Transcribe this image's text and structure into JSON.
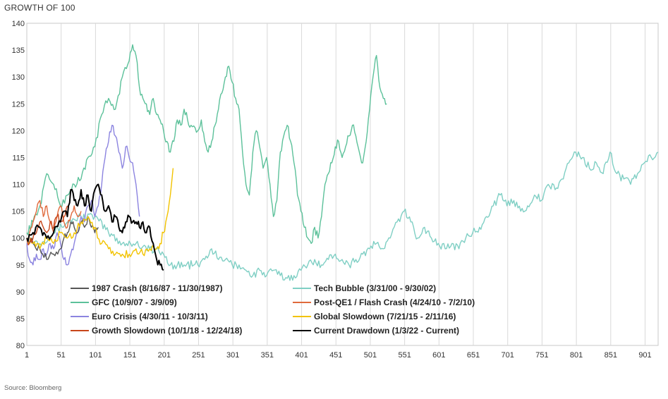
{
  "chart_data": {
    "type": "line",
    "title": "GROWTH OF 100",
    "source": "Source: Bloomberg",
    "xlabel": "",
    "ylabel": "",
    "xlim": [
      1,
      920
    ],
    "ylim": [
      80,
      140
    ],
    "x_ticks": [
      1,
      51,
      101,
      151,
      201,
      251,
      301,
      351,
      401,
      451,
      501,
      551,
      601,
      651,
      701,
      751,
      801,
      851,
      901
    ],
    "y_ticks": [
      80,
      85,
      90,
      95,
      100,
      105,
      110,
      115,
      120,
      125,
      130,
      135,
      140
    ],
    "grid": "vertical",
    "legend_position": "bottom-left inside",
    "series": [
      {
        "name": "1987 Crash (8/16/87 - 11/30/1987)",
        "color": "#555555",
        "width": 1.4,
        "points": [
          [
            1,
            100
          ],
          [
            10,
            99
          ],
          [
            20,
            98
          ],
          [
            30,
            96
          ],
          [
            40,
            97
          ],
          [
            50,
            98
          ],
          [
            55,
            100
          ],
          [
            60,
            101
          ],
          [
            65,
            103
          ],
          [
            70,
            102
          ],
          [
            75,
            101
          ],
          [
            80,
            103
          ],
          [
            85,
            102
          ],
          [
            90,
            104
          ],
          [
            95,
            102
          ],
          [
            100,
            101
          ],
          [
            105,
            102
          ]
        ]
      },
      {
        "name": "Tech Bubble (3/31/00 - 9/30/02)",
        "color": "#7fcfc4",
        "width": 1.4,
        "points": [
          [
            1,
            100
          ],
          [
            20,
            99
          ],
          [
            40,
            101
          ],
          [
            60,
            103
          ],
          [
            80,
            104
          ],
          [
            100,
            104
          ],
          [
            120,
            101
          ],
          [
            140,
            99
          ],
          [
            160,
            99
          ],
          [
            180,
            98
          ],
          [
            200,
            97
          ],
          [
            210,
            95
          ],
          [
            230,
            95
          ],
          [
            250,
            95
          ],
          [
            260,
            96
          ],
          [
            270,
            98
          ],
          [
            280,
            96
          ],
          [
            290,
            96
          ],
          [
            300,
            95
          ],
          [
            310,
            95
          ],
          [
            320,
            94
          ],
          [
            330,
            93
          ],
          [
            340,
            94
          ],
          [
            350,
            93
          ],
          [
            360,
            94
          ],
          [
            370,
            93
          ],
          [
            380,
            92.5
          ],
          [
            390,
            93
          ],
          [
            400,
            94
          ],
          [
            410,
            95
          ],
          [
            420,
            96
          ],
          [
            430,
            95
          ],
          [
            440,
            96
          ],
          [
            450,
            97
          ],
          [
            460,
            96
          ],
          [
            470,
            95
          ],
          [
            480,
            96
          ],
          [
            490,
            97
          ],
          [
            500,
            98
          ],
          [
            510,
            99
          ],
          [
            520,
            98
          ],
          [
            530,
            100
          ],
          [
            540,
            103
          ],
          [
            550,
            105
          ],
          [
            560,
            103
          ],
          [
            570,
            100
          ],
          [
            580,
            102
          ],
          [
            590,
            100
          ],
          [
            600,
            99
          ],
          [
            610,
            98
          ],
          [
            620,
            99
          ],
          [
            630,
            98
          ],
          [
            640,
            100
          ],
          [
            650,
            101
          ],
          [
            660,
            102
          ],
          [
            670,
            104
          ],
          [
            680,
            106
          ],
          [
            690,
            108
          ],
          [
            700,
            106
          ],
          [
            710,
            107
          ],
          [
            720,
            105
          ],
          [
            730,
            106
          ],
          [
            740,
            108
          ],
          [
            750,
            107
          ],
          [
            760,
            110
          ],
          [
            770,
            109
          ],
          [
            780,
            111
          ],
          [
            790,
            114
          ],
          [
            800,
            116
          ],
          [
            810,
            115
          ],
          [
            820,
            113
          ],
          [
            830,
            114
          ],
          [
            840,
            112
          ],
          [
            850,
            116
          ],
          [
            860,
            112
          ],
          [
            870,
            111
          ],
          [
            880,
            110
          ],
          [
            890,
            112
          ],
          [
            900,
            114
          ],
          [
            910,
            115
          ],
          [
            920,
            116
          ]
        ]
      },
      {
        "name": "GFC (10/9/07 - 3/9/09)",
        "color": "#5cc19a",
        "width": 1.4,
        "points": [
          [
            1,
            101
          ],
          [
            10,
            103
          ],
          [
            20,
            106
          ],
          [
            30,
            112
          ],
          [
            40,
            110
          ],
          [
            50,
            106
          ],
          [
            60,
            108
          ],
          [
            70,
            110
          ],
          [
            80,
            111
          ],
          [
            90,
            115
          ],
          [
            100,
            117
          ],
          [
            110,
            123
          ],
          [
            120,
            126
          ],
          [
            130,
            124
          ],
          [
            140,
            130
          ],
          [
            150,
            133
          ],
          [
            155,
            136
          ],
          [
            160,
            134
          ],
          [
            165,
            128
          ],
          [
            170,
            126
          ],
          [
            175,
            125
          ],
          [
            180,
            123
          ],
          [
            185,
            126
          ],
          [
            190,
            123
          ],
          [
            195,
            122
          ],
          [
            200,
            120
          ],
          [
            205,
            118
          ],
          [
            210,
            116
          ],
          [
            215,
            118
          ],
          [
            220,
            122
          ],
          [
            225,
            121
          ],
          [
            230,
            124
          ],
          [
            235,
            122
          ],
          [
            240,
            121
          ],
          [
            250,
            120
          ],
          [
            255,
            122
          ],
          [
            260,
            118
          ],
          [
            265,
            116
          ],
          [
            270,
            118
          ],
          [
            275,
            121
          ],
          [
            280,
            124
          ],
          [
            285,
            127
          ],
          [
            290,
            130
          ],
          [
            295,
            132
          ],
          [
            300,
            129
          ],
          [
            305,
            126
          ],
          [
            310,
            124
          ],
          [
            315,
            116
          ],
          [
            320,
            110
          ],
          [
            325,
            108
          ],
          [
            330,
            116
          ],
          [
            335,
            120
          ],
          [
            340,
            117
          ],
          [
            345,
            113
          ],
          [
            350,
            115
          ],
          [
            355,
            110
          ],
          [
            360,
            104
          ],
          [
            365,
            107
          ],
          [
            370,
            116
          ],
          [
            375,
            119
          ],
          [
            380,
            121
          ],
          [
            385,
            118
          ],
          [
            390,
            114
          ],
          [
            395,
            108
          ],
          [
            400,
            105
          ],
          [
            405,
            102
          ],
          [
            410,
            100
          ],
          [
            415,
            99
          ],
          [
            420,
            102
          ],
          [
            425,
            100
          ],
          [
            430,
            104
          ],
          [
            435,
            110
          ],
          [
            440,
            112
          ],
          [
            445,
            114
          ],
          [
            450,
            117
          ],
          [
            455,
            118
          ],
          [
            460,
            115
          ],
          [
            465,
            117
          ],
          [
            470,
            119
          ],
          [
            475,
            121
          ],
          [
            480,
            119
          ],
          [
            485,
            116
          ],
          [
            490,
            114
          ],
          [
            495,
            118
          ],
          [
            500,
            124
          ],
          [
            505,
            130
          ],
          [
            510,
            134
          ],
          [
            515,
            128
          ],
          [
            520,
            126
          ],
          [
            525,
            125
          ]
        ]
      },
      {
        "name": "Post-QE1 / Flash Crash (4/24/10 - 7/2/10)",
        "color": "#e06a3c",
        "width": 1.4,
        "points": [
          [
            1,
            100
          ],
          [
            5,
            101
          ],
          [
            10,
            103
          ],
          [
            15,
            105
          ],
          [
            20,
            107
          ],
          [
            25,
            104
          ],
          [
            30,
            106
          ],
          [
            35,
            103
          ],
          [
            40,
            101
          ],
          [
            45,
            104
          ],
          [
            50,
            106
          ],
          [
            55,
            103
          ],
          [
            60,
            102
          ],
          [
            65,
            104
          ],
          [
            70,
            106
          ],
          [
            75,
            104
          ],
          [
            80,
            105
          ]
        ]
      },
      {
        "name": "Euro Crisis (4/30/11 - 10/3/11)",
        "color": "#8c84e0",
        "width": 1.4,
        "points": [
          [
            1,
            99
          ],
          [
            5,
            96
          ],
          [
            10,
            95
          ],
          [
            15,
            97
          ],
          [
            20,
            96
          ],
          [
            25,
            98
          ],
          [
            30,
            97
          ],
          [
            35,
            99
          ],
          [
            40,
            98
          ],
          [
            45,
            101
          ],
          [
            50,
            99
          ],
          [
            55,
            96
          ],
          [
            60,
            95
          ],
          [
            65,
            97
          ],
          [
            70,
            99
          ],
          [
            75,
            101
          ],
          [
            80,
            104
          ],
          [
            85,
            103
          ],
          [
            90,
            106
          ],
          [
            95,
            107
          ],
          [
            100,
            104
          ],
          [
            105,
            106
          ],
          [
            110,
            110
          ],
          [
            115,
            115
          ],
          [
            120,
            118
          ],
          [
            125,
            121
          ],
          [
            130,
            119
          ],
          [
            135,
            116
          ],
          [
            140,
            113
          ],
          [
            145,
            117
          ],
          [
            150,
            115
          ],
          [
            155,
            114
          ],
          [
            160,
            110
          ],
          [
            165,
            104
          ]
        ]
      },
      {
        "name": "Global Slowdown (7/21/15 - 2/11/16)",
        "color": "#f2c300",
        "width": 1.4,
        "points": [
          [
            1,
            100
          ],
          [
            10,
            99
          ],
          [
            20,
            98
          ],
          [
            30,
            100
          ],
          [
            40,
            99
          ],
          [
            50,
            101
          ],
          [
            60,
            100
          ],
          [
            70,
            101
          ],
          [
            80,
            103
          ],
          [
            90,
            104
          ],
          [
            100,
            102
          ],
          [
            110,
            99
          ],
          [
            120,
            98
          ],
          [
            130,
            97
          ],
          [
            140,
            97
          ],
          [
            150,
            97
          ],
          [
            160,
            98
          ],
          [
            170,
            97
          ],
          [
            180,
            98
          ],
          [
            190,
            98
          ],
          [
            195,
            99
          ],
          [
            200,
            101
          ],
          [
            205,
            104
          ],
          [
            210,
            108
          ],
          [
            214,
            113
          ]
        ]
      },
      {
        "name": "Growth Slowdown (10/1/18 - 12/24/18)",
        "color": "#c8461a",
        "width": 1.4,
        "points": [
          [
            1,
            100
          ],
          [
            5,
            99
          ],
          [
            10,
            100
          ],
          [
            15,
            101
          ],
          [
            20,
            103
          ],
          [
            25,
            102
          ],
          [
            30,
            101
          ],
          [
            35,
            103
          ],
          [
            40,
            102
          ],
          [
            45,
            104
          ],
          [
            50,
            103
          ],
          [
            55,
            104
          ],
          [
            60,
            106
          ]
        ]
      },
      {
        "name": "Current Drawdown (1/3/22 - Current)",
        "color": "#000000",
        "width": 2.0,
        "points": [
          [
            1,
            100
          ],
          [
            10,
            101
          ],
          [
            20,
            102
          ],
          [
            30,
            100
          ],
          [
            40,
            101
          ],
          [
            50,
            103
          ],
          [
            55,
            105
          ],
          [
            60,
            104
          ],
          [
            65,
            109
          ],
          [
            70,
            107
          ],
          [
            75,
            106
          ],
          [
            80,
            109
          ],
          [
            85,
            106
          ],
          [
            90,
            108
          ],
          [
            95,
            105
          ],
          [
            100,
            109
          ],
          [
            105,
            110
          ],
          [
            110,
            108
          ],
          [
            115,
            105
          ],
          [
            120,
            106
          ],
          [
            125,
            103
          ],
          [
            130,
            104
          ],
          [
            135,
            102
          ],
          [
            140,
            101
          ],
          [
            145,
            103
          ],
          [
            150,
            104
          ],
          [
            155,
            103
          ],
          [
            160,
            103
          ],
          [
            165,
            102
          ],
          [
            170,
            103
          ],
          [
            175,
            101
          ],
          [
            180,
            102
          ],
          [
            185,
            99
          ],
          [
            190,
            96
          ],
          [
            195,
            95
          ],
          [
            200,
            94
          ]
        ]
      }
    ]
  }
}
